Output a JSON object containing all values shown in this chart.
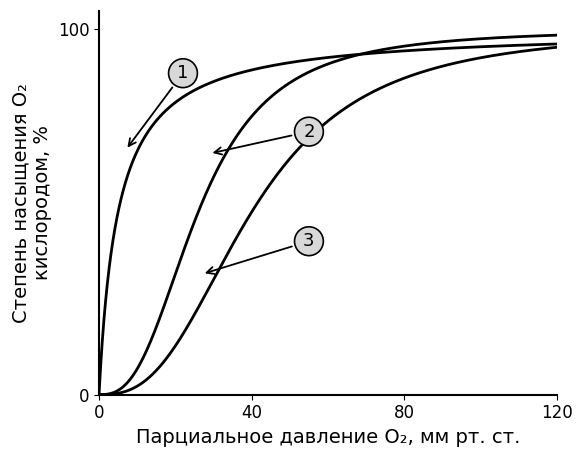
{
  "xlabel": "Парциальное давление O₂, мм рт. ст.",
  "ylabel": "Степень насыщения O₂\nкислородом, %",
  "xlim": [
    0,
    120
  ],
  "ylim": [
    0,
    105
  ],
  "xticks": [
    0,
    40,
    80,
    120
  ],
  "yticks": [
    0,
    100
  ],
  "curve1_label": "1",
  "curve2_label": "2",
  "curve3_label": "3",
  "curve1_P50": 5,
  "curve2_P50": 26,
  "curve2_n": 2.7,
  "curve3_P50": 40,
  "curve3_n": 2.7,
  "line_color": "#000000",
  "bg_color": "#ffffff",
  "label_bg": "#d8d8d8",
  "font_size_axis": 12,
  "font_size_label": 14,
  "lw": 2.0
}
